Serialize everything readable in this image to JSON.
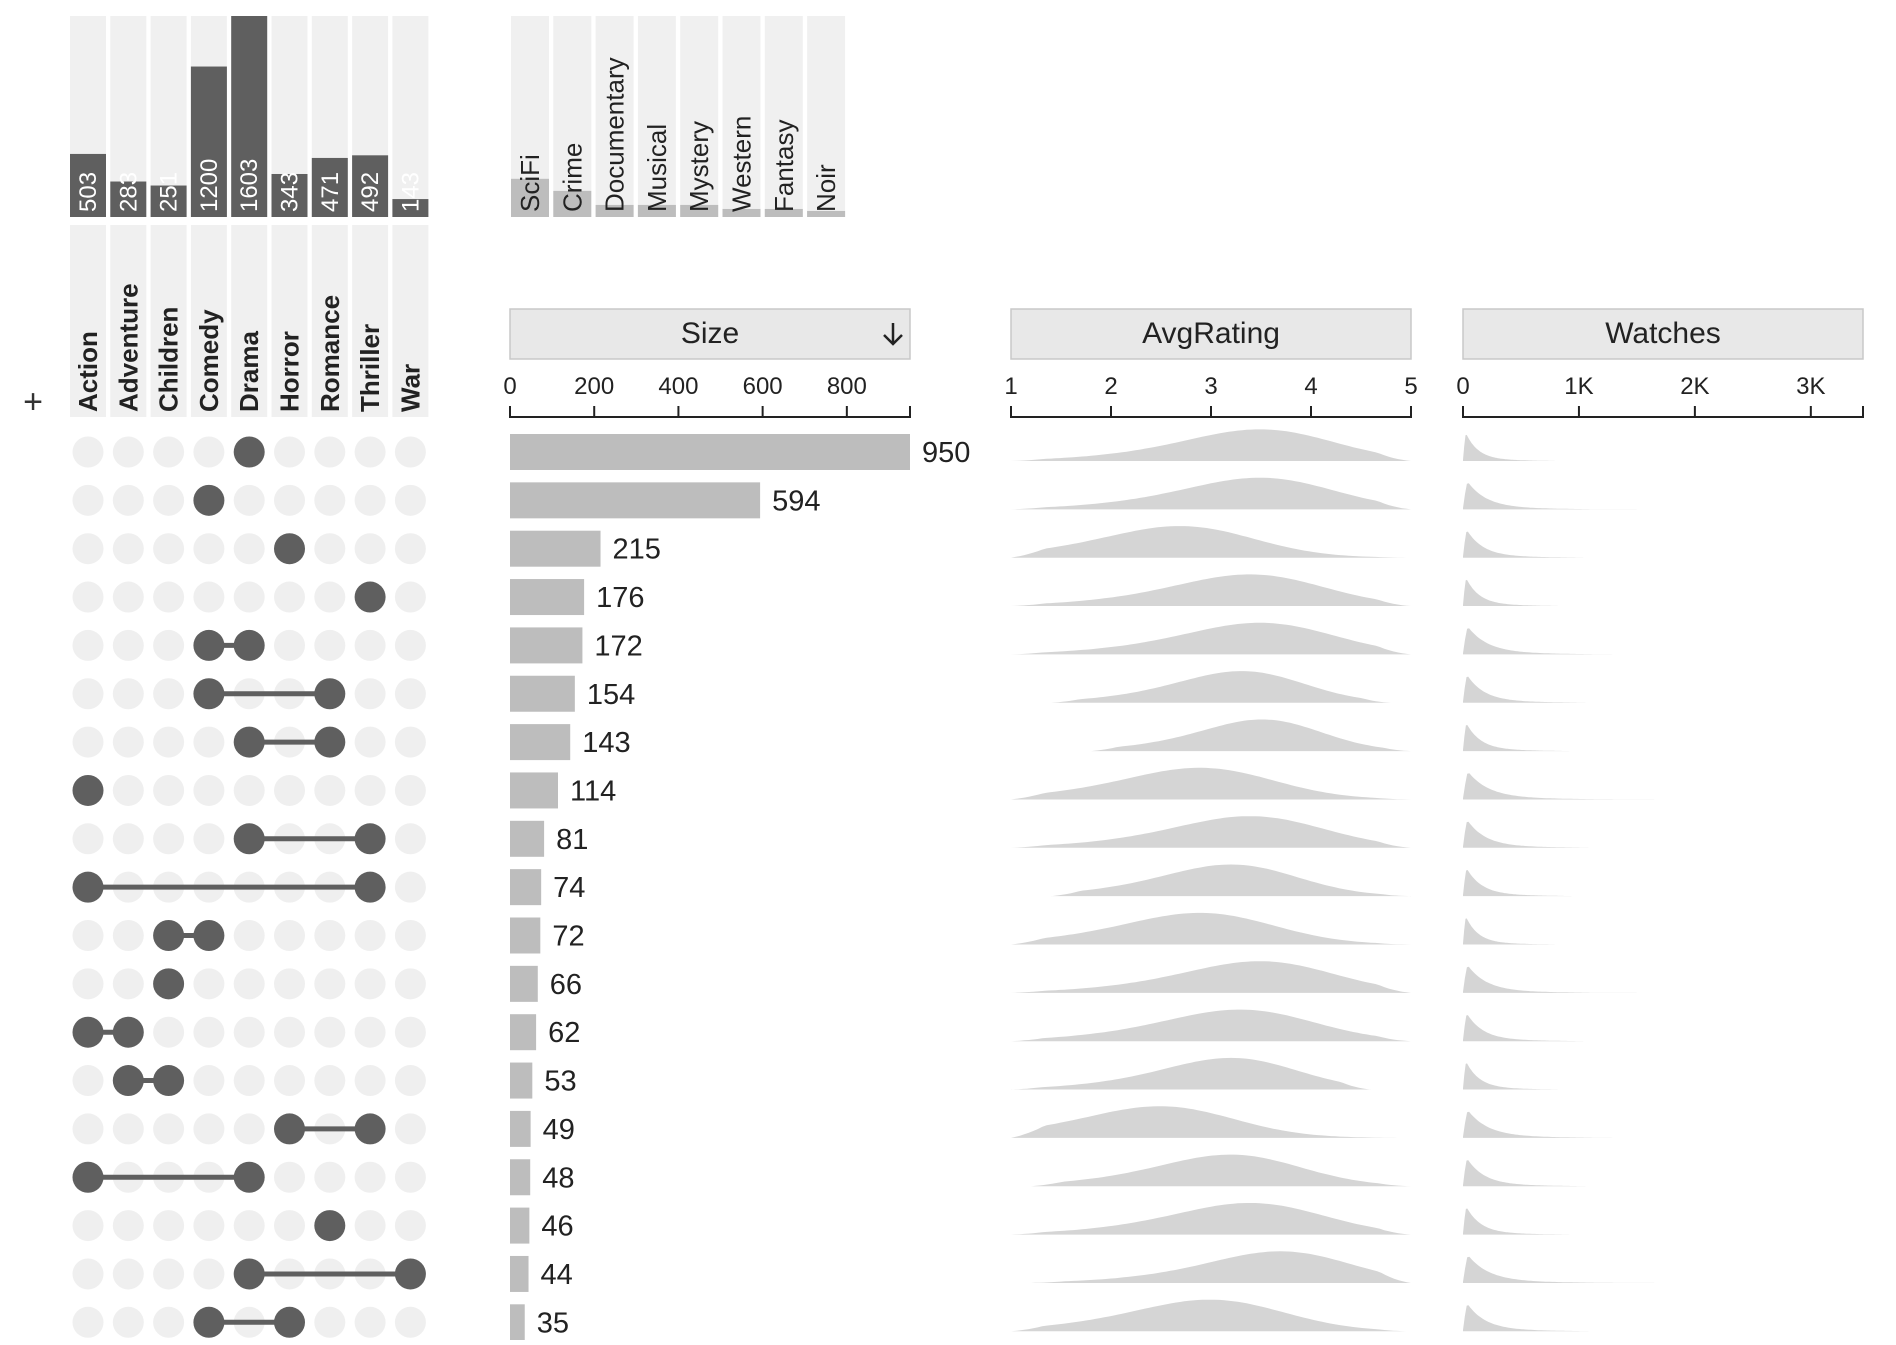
{
  "add_label": "+",
  "chart_data": {
    "type": "upset",
    "sets": [
      {
        "name": "Action",
        "size": 503
      },
      {
        "name": "Adventure",
        "size": 283
      },
      {
        "name": "Children",
        "size": 251
      },
      {
        "name": "Comedy",
        "size": 1200
      },
      {
        "name": "Drama",
        "size": 1603
      },
      {
        "name": "Horror",
        "size": 343
      },
      {
        "name": "Romance",
        "size": 471
      },
      {
        "name": "Thriller",
        "size": 492
      },
      {
        "name": "War",
        "size": 143
      }
    ],
    "hidden_sets": [
      {
        "name": "SciFi",
        "size_fraction": 0.19
      },
      {
        "name": "Crime",
        "size_fraction": 0.13
      },
      {
        "name": "Documentary",
        "size_fraction": 0.06
      },
      {
        "name": "Musical",
        "size_fraction": 0.06
      },
      {
        "name": "Mystery",
        "size_fraction": 0.06
      },
      {
        "name": "Western",
        "size_fraction": 0.04
      },
      {
        "name": "Fantasy",
        "size_fraction": 0.04
      },
      {
        "name": "Noir",
        "size_fraction": 0.03
      }
    ],
    "set_sizes_max": 1603,
    "intersections": [
      {
        "sets": [
          "Drama"
        ],
        "size": 950,
        "avg_rating_peak": 3.6,
        "avg_rating_range": [
          1,
          5
        ]
      },
      {
        "sets": [
          "Comedy"
        ],
        "size": 594,
        "avg_rating_peak": 3.6,
        "avg_rating_range": [
          1,
          5
        ]
      },
      {
        "sets": [
          "Horror"
        ],
        "size": 215,
        "avg_rating_peak": 2.8,
        "avg_rating_range": [
          1,
          5
        ]
      },
      {
        "sets": [
          "Thriller"
        ],
        "size": 176,
        "avg_rating_peak": 3.5,
        "avg_rating_range": [
          1,
          5
        ]
      },
      {
        "sets": [
          "Comedy",
          "Drama"
        ],
        "size": 172,
        "avg_rating_peak": 3.6,
        "avg_rating_range": [
          1,
          5
        ]
      },
      {
        "sets": [
          "Comedy",
          "Romance"
        ],
        "size": 154,
        "avg_rating_peak": 3.4,
        "avg_rating_range": [
          1.4,
          4.8
        ]
      },
      {
        "sets": [
          "Drama",
          "Romance"
        ],
        "size": 143,
        "avg_rating_peak": 3.6,
        "avg_rating_range": [
          1.8,
          5
        ]
      },
      {
        "sets": [
          "Action"
        ],
        "size": 114,
        "avg_rating_peak": 3.0,
        "avg_rating_range": [
          1,
          5
        ]
      },
      {
        "sets": [
          "Drama",
          "Thriller"
        ],
        "size": 81,
        "avg_rating_peak": 3.5,
        "avg_rating_range": [
          1,
          5
        ]
      },
      {
        "sets": [
          "Action",
          "Thriller"
        ],
        "size": 74,
        "avg_rating_peak": 3.3,
        "avg_rating_range": [
          1.4,
          5
        ]
      },
      {
        "sets": [
          "Children",
          "Comedy"
        ],
        "size": 72,
        "avg_rating_peak": 3.0,
        "avg_rating_range": [
          1,
          5
        ]
      },
      {
        "sets": [
          "Children"
        ],
        "size": 66,
        "avg_rating_peak": 3.6,
        "avg_rating_range": [
          1,
          5
        ]
      },
      {
        "sets": [
          "Action",
          "Adventure"
        ],
        "size": 62,
        "avg_rating_peak": 3.4,
        "avg_rating_range": [
          1,
          5
        ]
      },
      {
        "sets": [
          "Adventure",
          "Children"
        ],
        "size": 53,
        "avg_rating_peak": 3.3,
        "avg_rating_range": [
          1,
          4.6
        ]
      },
      {
        "sets": [
          "Horror",
          "Thriller"
        ],
        "size": 49,
        "avg_rating_peak": 2.6,
        "avg_rating_range": [
          1,
          5
        ]
      },
      {
        "sets": [
          "Action",
          "Drama"
        ],
        "size": 48,
        "avg_rating_peak": 3.3,
        "avg_rating_range": [
          1.2,
          5
        ]
      },
      {
        "sets": [
          "Romance"
        ],
        "size": 46,
        "avg_rating_peak": 3.5,
        "avg_rating_range": [
          1,
          5
        ]
      },
      {
        "sets": [
          "Drama",
          "War"
        ],
        "size": 44,
        "avg_rating_peak": 3.8,
        "avg_rating_range": [
          1.2,
          5
        ]
      },
      {
        "sets": [
          "Comedy",
          "Horror"
        ],
        "size": 35,
        "avg_rating_peak": 3.1,
        "avg_rating_range": [
          1,
          5
        ]
      }
    ],
    "columns": [
      {
        "title": "Size",
        "type": "bar",
        "sorted": "descending",
        "sort_icon": "arrow-down-icon",
        "ticks": [
          "0",
          "200",
          "400",
          "600",
          "800"
        ],
        "range": [
          0,
          950
        ]
      },
      {
        "title": "AvgRating",
        "type": "density",
        "ticks": [
          "1",
          "2",
          "3",
          "4",
          "5"
        ],
        "range": [
          1,
          5
        ]
      },
      {
        "title": "Watches",
        "type": "density",
        "ticks": [
          "0",
          "1K",
          "2K",
          "3K"
        ],
        "range": [
          0,
          3450
        ]
      }
    ],
    "colors": {
      "active": "#5f5f5f",
      "inactive": "#efefef",
      "bar": "#bdbdbd",
      "density": "#d5d5d5",
      "header": "#e8e8e8",
      "column_bg": "#f0f0f0"
    }
  }
}
